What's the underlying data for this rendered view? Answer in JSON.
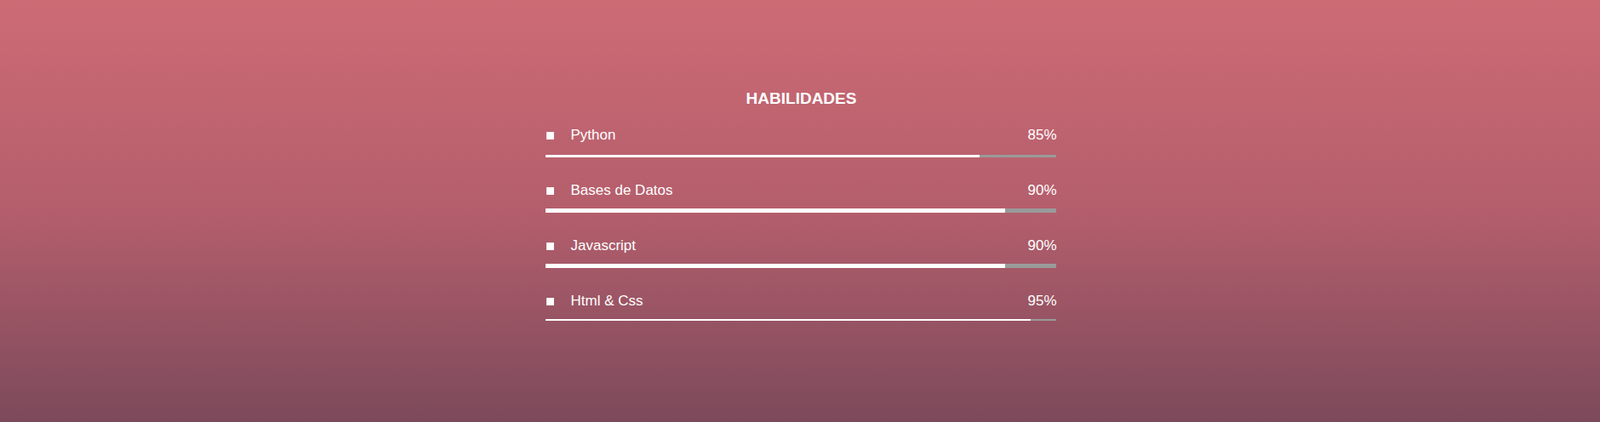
{
  "chart_data": {
    "type": "bar",
    "orientation": "horizontal",
    "title": "HABILIDADES",
    "categories": [
      "Html & Css",
      "Javascript",
      "Bases de Datos",
      "Python"
    ],
    "values": [
      95,
      90,
      90,
      85
    ],
    "value_labels": [
      "95%",
      "90%",
      "90%",
      "85%"
    ],
    "xlim": [
      0,
      100
    ],
    "color": "#ffffff",
    "data_labels": true,
    "tick_labels": false,
    "grid": false
  }
}
